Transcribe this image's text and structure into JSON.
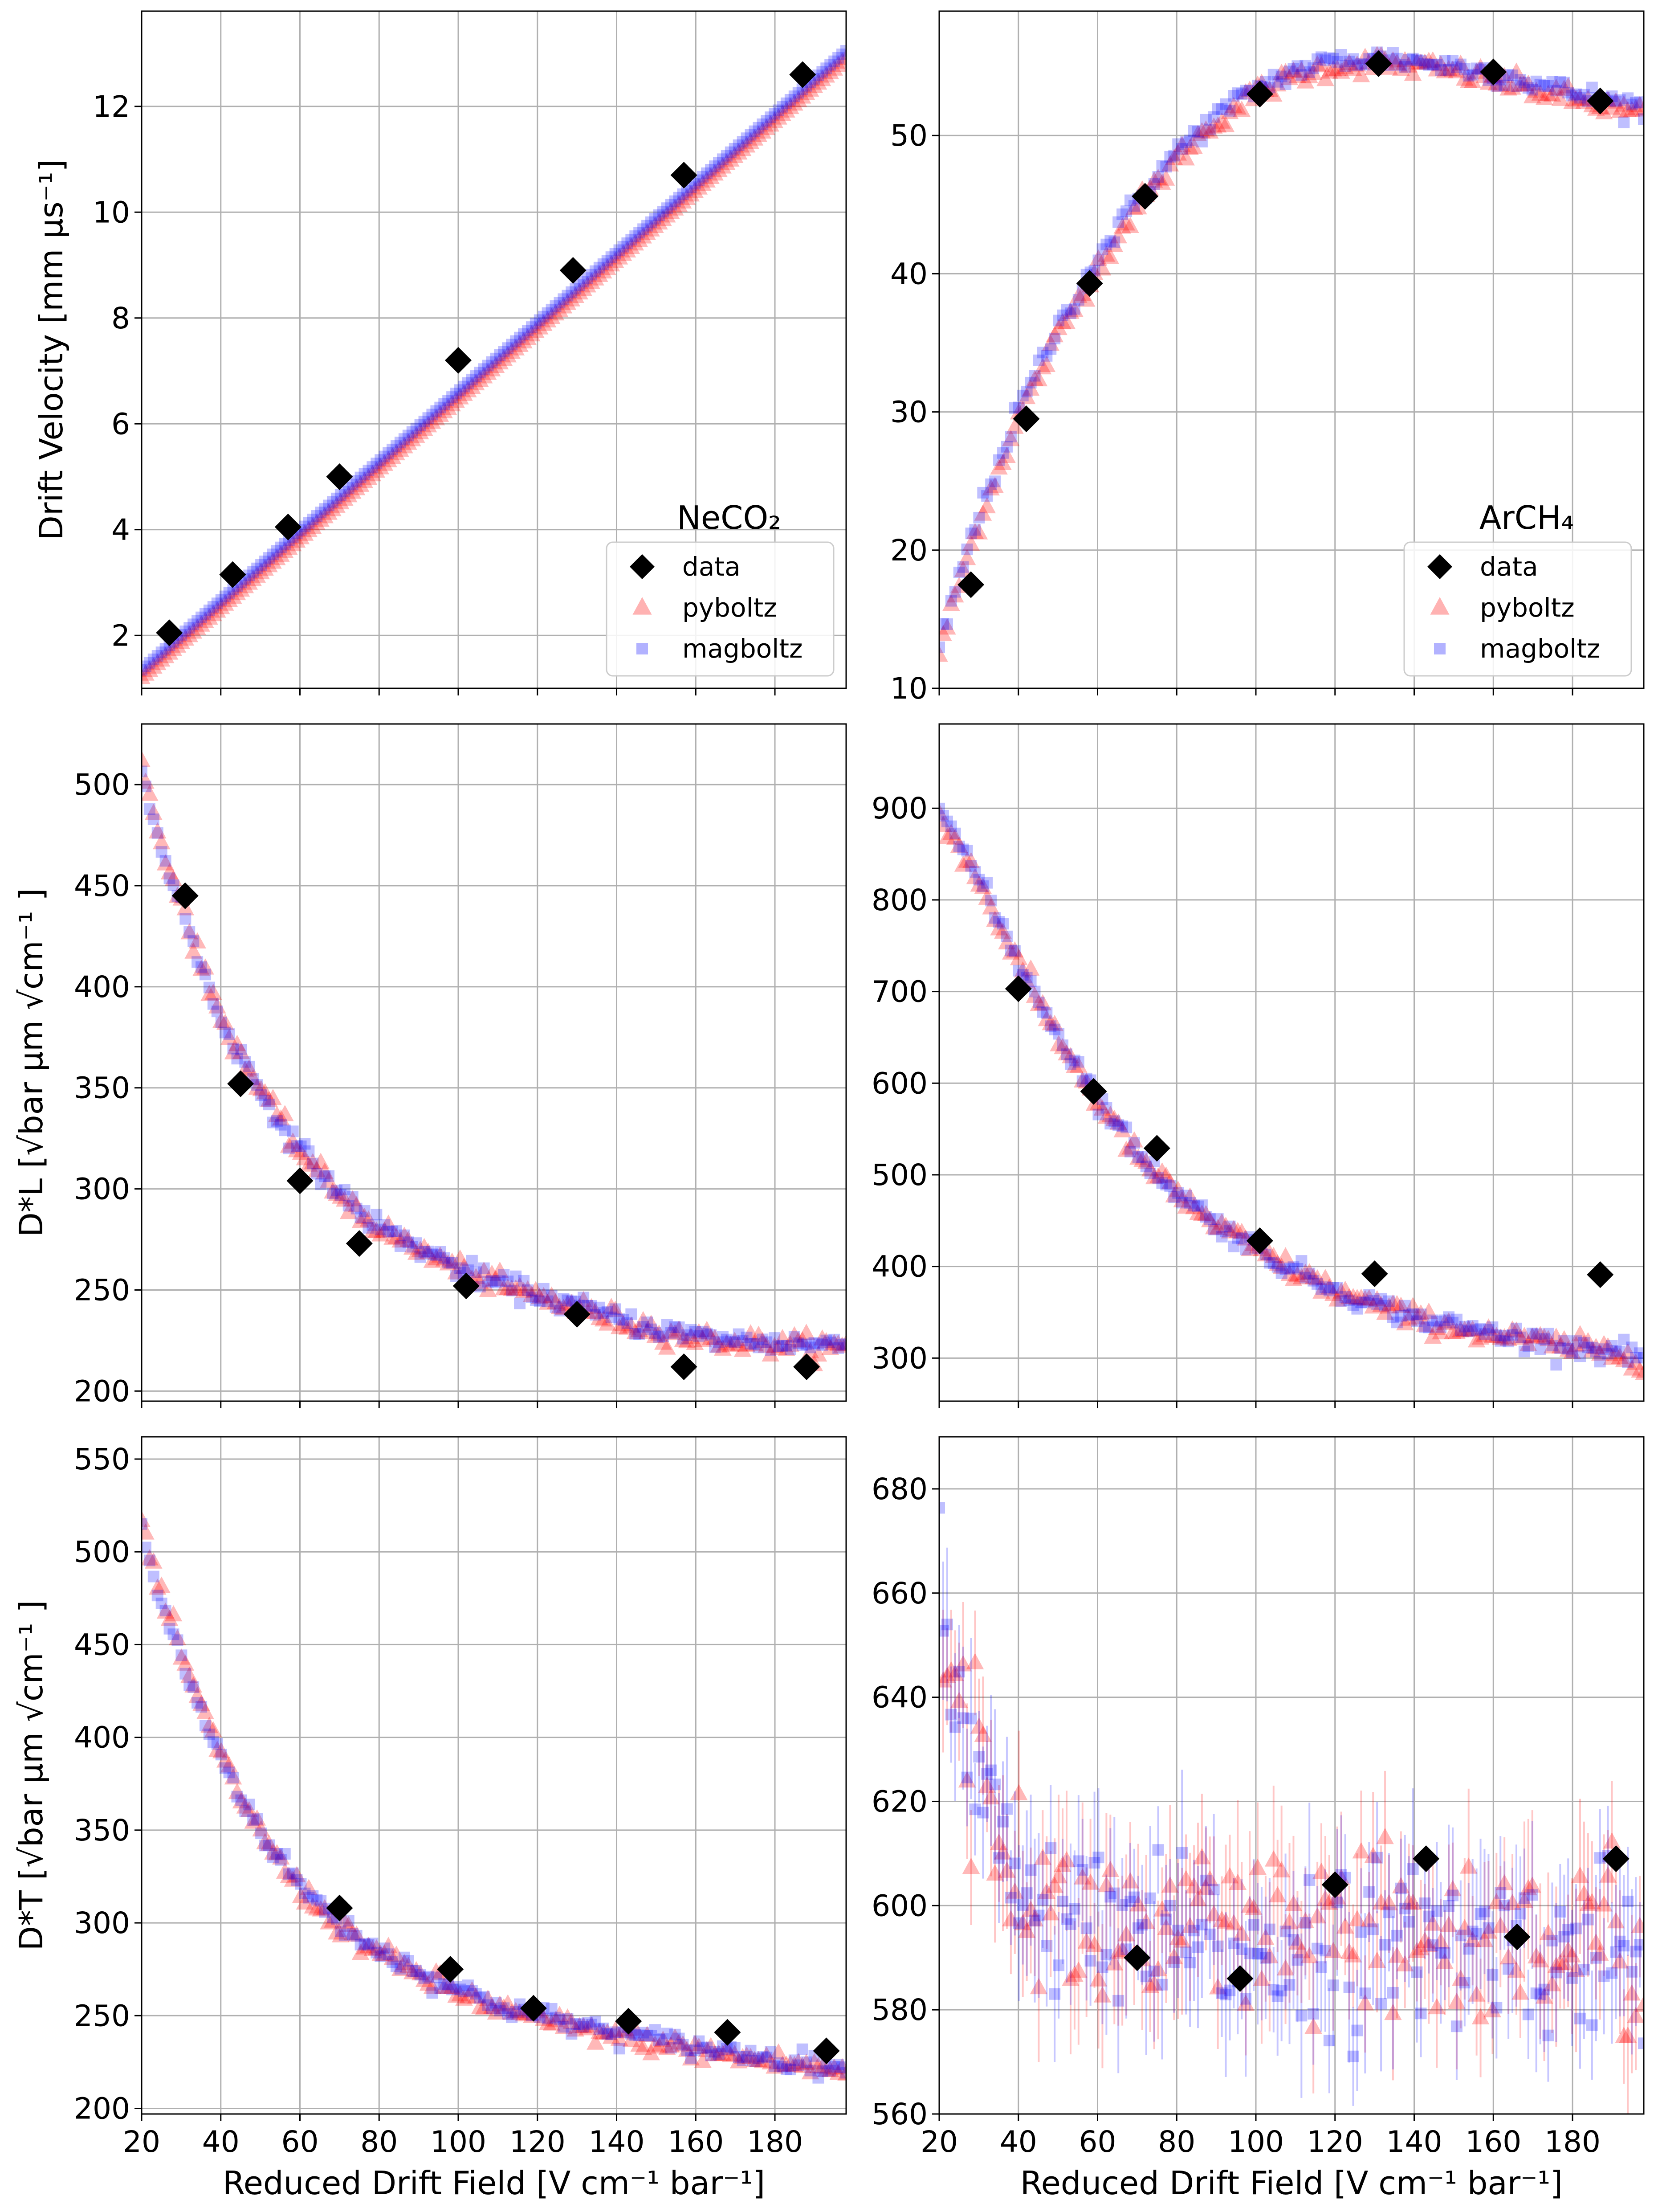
{
  "x_axis": {
    "label": "Reduced Drift Field [V cm⁻¹ bar⁻¹]",
    "ticks": [
      20,
      40,
      60,
      80,
      100,
      120,
      140,
      160,
      180
    ],
    "xlim": [
      20,
      198
    ]
  },
  "colors": {
    "data": "#000000",
    "pyboltz": "#ff0000",
    "magboltz": "#0000ff",
    "grid": "#b0b0b0"
  },
  "chart_data": [
    {
      "id": "neco2-velocity",
      "type": "scatter",
      "title": "",
      "ylabel": "Drift Velocity [mm μs⁻¹]",
      "ylim": [
        1.0,
        13.8
      ],
      "yticks": [
        2,
        4,
        6,
        8,
        10,
        12
      ],
      "legend": {
        "title": "NeCO₂",
        "placement": "lower-right",
        "entries": [
          "data",
          "pyboltz",
          "magboltz"
        ]
      },
      "series": [
        {
          "name": "data",
          "x": [
            27,
            43,
            57,
            70,
            100,
            129,
            157,
            187
          ],
          "y": [
            2.05,
            3.15,
            4.05,
            5.0,
            7.2,
            8.9,
            10.7,
            12.6
          ]
        },
        {
          "name": "pyboltz",
          "model": "linear",
          "x": [
            20,
            198
          ],
          "y": [
            1.2,
            12.9
          ]
        },
        {
          "name": "magboltz",
          "model": "linear",
          "x": [
            20,
            198
          ],
          "y": [
            1.35,
            13.05
          ]
        }
      ]
    },
    {
      "id": "arch4-velocity",
      "type": "scatter",
      "title": "",
      "ylabel": "",
      "ylim": [
        10,
        59
      ],
      "yticks": [
        10,
        20,
        30,
        40,
        50
      ],
      "legend": {
        "title": "ArCH₄",
        "placement": "lower-right",
        "entries": [
          "data",
          "pyboltz",
          "magboltz"
        ]
      },
      "series": [
        {
          "name": "data",
          "x": [
            28,
            42,
            58,
            72,
            101,
            131,
            160,
            187
          ],
          "y": [
            17.5,
            29.5,
            39.3,
            45.6,
            53.0,
            55.2,
            54.6,
            52.5
          ]
        },
        {
          "name": "pyboltz",
          "model": "curve",
          "x": [
            20,
            25,
            30,
            40,
            50,
            60,
            70,
            80,
            90,
            100,
            110,
            120,
            130,
            140,
            150,
            160,
            170,
            180,
            190,
            198
          ],
          "y": [
            12.5,
            17.5,
            22.0,
            29.5,
            35.5,
            40.5,
            44.8,
            48.3,
            51.0,
            53.0,
            54.3,
            55.0,
            55.2,
            55.0,
            54.6,
            54.0,
            53.3,
            52.6,
            52.0,
            51.5
          ]
        },
        {
          "name": "magboltz",
          "model": "curve",
          "x": [
            20,
            25,
            30,
            40,
            50,
            60,
            70,
            80,
            90,
            100,
            110,
            120,
            130,
            140,
            150,
            160,
            170,
            180,
            190,
            198
          ],
          "y": [
            13.0,
            18.0,
            22.6,
            30.1,
            36.1,
            41.1,
            45.3,
            48.8,
            51.4,
            53.4,
            54.7,
            55.4,
            55.6,
            55.4,
            55.0,
            54.5,
            53.8,
            53.1,
            52.5,
            52.0
          ]
        }
      ]
    },
    {
      "id": "neco2-dl",
      "type": "scatter",
      "title": "",
      "ylabel": "D*L [√bar μm √cm⁻¹ ]",
      "ylim": [
        195,
        530
      ],
      "yticks": [
        200,
        250,
        300,
        350,
        400,
        450,
        500
      ],
      "series": [
        {
          "name": "data",
          "x": [
            31,
            45,
            60,
            75,
            102,
            130,
            157,
            188
          ],
          "y": [
            445,
            352,
            304,
            273,
            252,
            238,
            212,
            212
          ]
        },
        {
          "name": "pyboltz",
          "model": "curve",
          "x": [
            20,
            25,
            30,
            35,
            40,
            50,
            60,
            70,
            80,
            90,
            100,
            110,
            120,
            130,
            140,
            150,
            160,
            170,
            180,
            190,
            198
          ],
          "y": [
            510,
            470,
            443,
            410,
            385,
            348,
            318,
            297,
            280,
            270,
            260,
            252,
            247,
            241,
            235,
            230,
            226,
            224,
            223,
            222,
            221
          ]
        },
        {
          "name": "magboltz",
          "model": "curve",
          "x": [
            20,
            25,
            30,
            35,
            40,
            50,
            60,
            70,
            80,
            90,
            100,
            110,
            120,
            130,
            140,
            150,
            160,
            170,
            180,
            190,
            198
          ],
          "y": [
            506,
            468,
            441,
            409,
            384,
            348,
            319,
            298,
            281,
            271,
            261,
            253,
            248,
            242,
            236,
            231,
            227,
            225,
            224,
            223,
            223
          ]
        }
      ]
    },
    {
      "id": "arch4-dl",
      "type": "scatter",
      "title": "",
      "ylabel": "",
      "ylim": [
        253,
        992
      ],
      "yticks": [
        300,
        400,
        500,
        600,
        700,
        800,
        900
      ],
      "series": [
        {
          "name": "data",
          "x": [
            40,
            59,
            75,
            101,
            130,
            187
          ],
          "y": [
            703,
            591,
            529,
            428,
            392,
            391
          ]
        },
        {
          "name": "pyboltz",
          "model": "curve",
          "x": [
            20,
            25,
            30,
            40,
            50,
            60,
            70,
            80,
            90,
            100,
            110,
            120,
            130,
            140,
            150,
            160,
            170,
            180,
            190,
            198
          ],
          "y": [
            895,
            858,
            820,
            730,
            650,
            580,
            520,
            478,
            445,
            418,
            393,
            373,
            357,
            343,
            333,
            325,
            318,
            312,
            306,
            298
          ]
        },
        {
          "name": "magboltz",
          "model": "curve",
          "x": [
            20,
            25,
            30,
            40,
            50,
            60,
            70,
            80,
            90,
            100,
            110,
            120,
            130,
            140,
            150,
            160,
            170,
            180,
            190,
            198
          ],
          "y": [
            905,
            862,
            823,
            733,
            653,
            584,
            524,
            481,
            447,
            420,
            395,
            375,
            359,
            345,
            335,
            327,
            320,
            314,
            308,
            303
          ]
        }
      ]
    },
    {
      "id": "neco2-dt",
      "type": "scatter",
      "title": "",
      "ylabel": "D*T [√bar μm √cm⁻¹ ]",
      "ylim": [
        197,
        562
      ],
      "yticks": [
        200,
        250,
        300,
        350,
        400,
        450,
        500,
        550
      ],
      "series": [
        {
          "name": "data",
          "x": [
            70,
            98,
            119,
            143,
            168,
            193
          ],
          "y": [
            308,
            275,
            254,
            247,
            241,
            231
          ]
        },
        {
          "name": "pyboltz",
          "model": "curve",
          "x": [
            20,
            25,
            30,
            35,
            40,
            50,
            60,
            70,
            80,
            90,
            100,
            110,
            120,
            130,
            140,
            150,
            160,
            170,
            180,
            190,
            198
          ],
          "y": [
            515,
            475,
            445,
            415,
            390,
            348,
            318,
            298,
            283,
            272,
            262,
            254,
            248,
            243,
            239,
            235,
            231,
            228,
            225,
            222,
            220
          ]
        },
        {
          "name": "magboltz",
          "model": "curve",
          "x": [
            20,
            25,
            30,
            35,
            40,
            50,
            60,
            70,
            80,
            90,
            100,
            110,
            120,
            130,
            140,
            150,
            160,
            170,
            180,
            190,
            198
          ],
          "y": [
            510,
            472,
            443,
            414,
            390,
            349,
            320,
            300,
            285,
            274,
            264,
            256,
            250,
            245,
            241,
            237,
            233,
            230,
            227,
            224,
            222
          ]
        }
      ]
    },
    {
      "id": "arch4-dt",
      "type": "scatter",
      "title": "",
      "ylabel": "",
      "ylim": [
        560,
        690
      ],
      "yticks": [
        560,
        580,
        600,
        620,
        640,
        660,
        680
      ],
      "series": [
        {
          "name": "data",
          "x": [
            70,
            96,
            120,
            143,
            166,
            191
          ],
          "y": [
            590,
            586,
            604,
            609,
            594,
            609
          ]
        },
        {
          "name": "pyboltz",
          "model": "noisy",
          "x": [
            20,
            22,
            25,
            30,
            35,
            40,
            50,
            60,
            80,
            100,
            140,
            198
          ],
          "y": [
            672,
            655,
            640,
            625,
            612,
            605,
            598,
            595,
            593,
            593,
            593,
            593
          ],
          "noise": 9
        },
        {
          "name": "magboltz",
          "model": "noisy",
          "x": [
            20,
            22,
            25,
            30,
            35,
            40,
            50,
            60,
            80,
            100,
            140,
            198
          ],
          "y": [
            668,
            652,
            636,
            622,
            610,
            603,
            597,
            594,
            592,
            592,
            592,
            592
          ],
          "noise": 8
        }
      ]
    }
  ]
}
